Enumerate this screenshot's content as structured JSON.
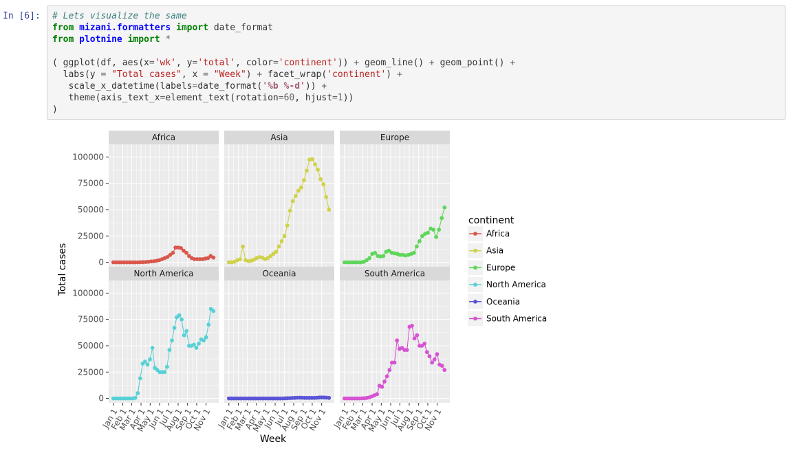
{
  "cell": {
    "prompt": "In [6]:",
    "code_lines": [
      [
        {
          "t": "# Lets visualize the same",
          "c": "cm"
        }
      ],
      [
        {
          "t": "from",
          "c": "kw"
        },
        {
          "t": " "
        },
        {
          "t": "mizani.formatters",
          "c": "nm"
        },
        {
          "t": " "
        },
        {
          "t": "import",
          "c": "kw"
        },
        {
          "t": " date_format"
        }
      ],
      [
        {
          "t": "from",
          "c": "kw"
        },
        {
          "t": " "
        },
        {
          "t": "plotnine",
          "c": "nm"
        },
        {
          "t": " "
        },
        {
          "t": "import",
          "c": "kw"
        },
        {
          "t": " "
        },
        {
          "t": "*",
          "c": "op"
        }
      ],
      [
        {
          "t": ""
        }
      ],
      [
        {
          "t": "( ggplot(df, aes(x"
        },
        {
          "t": "=",
          "c": "op"
        },
        {
          "t": "'wk'",
          "c": "st"
        },
        {
          "t": ", y"
        },
        {
          "t": "=",
          "c": "op"
        },
        {
          "t": "'total'",
          "c": "st"
        },
        {
          "t": ", color"
        },
        {
          "t": "=",
          "c": "op"
        },
        {
          "t": "'continent'",
          "c": "st"
        },
        {
          "t": ")) "
        },
        {
          "t": "+",
          "c": "op"
        },
        {
          "t": " geom_line() "
        },
        {
          "t": "+",
          "c": "op"
        },
        {
          "t": " geom_point() "
        },
        {
          "t": "+",
          "c": "op"
        }
      ],
      [
        {
          "t": "  labs(y "
        },
        {
          "t": "=",
          "c": "op"
        },
        {
          "t": " "
        },
        {
          "t": "\"Total cases\"",
          "c": "st"
        },
        {
          "t": ", x "
        },
        {
          "t": "=",
          "c": "op"
        },
        {
          "t": " "
        },
        {
          "t": "\"Week\"",
          "c": "st"
        },
        {
          "t": ") "
        },
        {
          "t": "+",
          "c": "op"
        },
        {
          "t": " facet_wrap("
        },
        {
          "t": "'continent'",
          "c": "st"
        },
        {
          "t": ") "
        },
        {
          "t": "+",
          "c": "op"
        }
      ],
      [
        {
          "t": "   scale_x_datetime(labels"
        },
        {
          "t": "=",
          "c": "op"
        },
        {
          "t": "date_format("
        },
        {
          "t": "'",
          "c": "st"
        },
        {
          "t": "%b %-d",
          "c": "si"
        },
        {
          "t": "'",
          "c": "st"
        },
        {
          "t": ")) "
        },
        {
          "t": "+",
          "c": "op"
        }
      ],
      [
        {
          "t": "   theme(axis_text_x"
        },
        {
          "t": "=",
          "c": "op"
        },
        {
          "t": "element_text(rotation"
        },
        {
          "t": "=",
          "c": "op"
        },
        {
          "t": "60",
          "c": "nu"
        },
        {
          "t": ", hjust"
        },
        {
          "t": "=",
          "c": "op"
        },
        {
          "t": "1",
          "c": "nu"
        },
        {
          "t": "))"
        }
      ],
      [
        {
          "t": ")"
        }
      ]
    ]
  },
  "chart_data": {
    "type": "line",
    "facets": [
      "Africa",
      "Asia",
      "Europe",
      "North America",
      "Oceania",
      "South America"
    ],
    "xlabel": "Week",
    "ylabel": "Total cases",
    "ylim": [
      0,
      100000
    ],
    "y_ticks": [
      0,
      25000,
      50000,
      75000,
      100000
    ],
    "y_tick_labels": [
      "0",
      "25000",
      "50000",
      "75000",
      "100000"
    ],
    "x_tick_labels": [
      "Jan 1",
      "Feb 1",
      "Mar 1",
      "Apr 1",
      "May 1",
      "Jun 1",
      "Jul 1",
      "Aug 1",
      "Sep 1",
      "Oct 1",
      "Nov 1"
    ],
    "x_week_range": [
      0,
      47
    ],
    "legend": {
      "title": "continent",
      "position": "right",
      "entries": [
        "Africa",
        "Asia",
        "Europe",
        "North America",
        "Oceania",
        "South America"
      ]
    },
    "colors": {
      "Africa": "#d9574d",
      "Asia": "#cfd24a",
      "Europe": "#5fd65a",
      "North America": "#58d0d6",
      "Oceania": "#5a55d6",
      "South America": "#d653d1"
    },
    "grid": true,
    "series": [
      {
        "name": "Africa",
        "values": [
          0,
          0,
          0,
          0,
          0,
          0,
          0,
          0,
          0,
          0,
          100,
          200,
          300,
          500,
          800,
          1000,
          1500,
          2000,
          3000,
          4000,
          5000,
          7000,
          9000,
          14000,
          14000,
          13500,
          11000,
          9000,
          6000,
          4000,
          3000,
          3000,
          3000,
          3000,
          3500,
          4000,
          6000,
          4500
        ]
      },
      {
        "name": "Asia",
        "values": [
          0,
          0,
          500,
          2000,
          3000,
          15000,
          2000,
          1000,
          1500,
          2500,
          4000,
          5000,
          4500,
          3000,
          4000,
          6000,
          8000,
          10000,
          15000,
          20000,
          25000,
          35000,
          49000,
          58000,
          63000,
          68000,
          71000,
          78000,
          87000,
          97500,
          98000,
          93000,
          88000,
          79000,
          74000,
          62000,
          50000
        ]
      },
      {
        "name": "Europe",
        "values": [
          0,
          0,
          0,
          0,
          0,
          0,
          0,
          500,
          2000,
          4000,
          8000,
          9000,
          6000,
          5500,
          6000,
          10000,
          11000,
          9000,
          8500,
          8000,
          7000,
          7000,
          6500,
          7000,
          8000,
          9000,
          15000,
          20000,
          25000,
          27000,
          28000,
          32000,
          31000,
          24000,
          31000,
          42000,
          52000
        ]
      },
      {
        "name": "North America",
        "values": [
          0,
          0,
          0,
          0,
          0,
          0,
          0,
          0,
          0,
          500,
          5000,
          19000,
          33000,
          35000,
          32000,
          37000,
          48000,
          29000,
          27000,
          25000,
          25000,
          25000,
          30000,
          46000,
          55000,
          67000,
          77000,
          79000,
          75000,
          60000,
          64000,
          50000,
          50000,
          51000,
          48000,
          52000,
          56000,
          55000,
          58000,
          70000,
          85000,
          83000
        ]
      },
      {
        "name": "Oceania",
        "values": [
          0,
          0,
          0,
          0,
          0,
          0,
          0,
          0,
          0,
          0,
          0,
          0,
          0,
          0,
          0,
          0,
          0,
          0,
          0,
          0,
          0,
          0,
          0,
          100,
          200,
          300,
          400,
          500,
          600,
          700,
          600,
          500,
          500,
          500,
          500,
          500,
          600,
          800,
          900,
          800,
          700,
          500
        ]
      },
      {
        "name": "South America",
        "values": [
          0,
          0,
          0,
          0,
          0,
          0,
          0,
          100,
          200,
          500,
          1000,
          2000,
          3000,
          4000,
          12000,
          11000,
          16000,
          21000,
          27000,
          34000,
          34000,
          55000,
          47000,
          48000,
          46000,
          46000,
          68000,
          69000,
          57000,
          60000,
          50000,
          50000,
          52000,
          44000,
          40000,
          34000,
          37000,
          42000,
          32000,
          31000,
          27000
        ]
      }
    ]
  }
}
